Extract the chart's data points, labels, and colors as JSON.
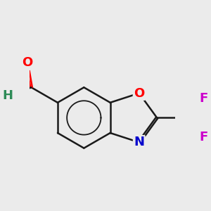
{
  "background_color": "#ebebeb",
  "bond_color": "#1a1a1a",
  "bond_width": 1.8,
  "atom_colors": {
    "O": "#ff0000",
    "N": "#0000cc",
    "F": "#cc00cc",
    "H": "#2e8b57",
    "C": "#1a1a1a"
  },
  "font_size": 13,
  "fig_size": [
    3.0,
    3.0
  ],
  "dpi": 100
}
